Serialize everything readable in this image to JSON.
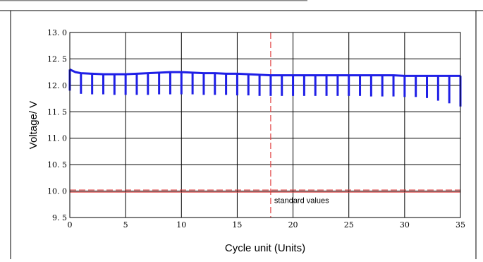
{
  "chart_data": {
    "type": "line",
    "xlabel": "Cycle unit (Units)",
    "ylabel": "Voltage/ V",
    "xlim": [
      0,
      35
    ],
    "ylim": [
      9.5,
      13.0
    ],
    "x_ticks": [
      "0",
      "5",
      "10",
      "15",
      "20",
      "25",
      "30",
      "35"
    ],
    "y_ticks": [
      "9. 5",
      "10. 0",
      "10. 5",
      "11. 0",
      "11. 5",
      "12. 0",
      "12. 5",
      "13. 0"
    ],
    "grid": true,
    "series": [
      {
        "color": "#1f1fe6",
        "upper": [
          [
            0,
            12.3
          ],
          [
            0.5,
            12.25
          ],
          [
            1,
            12.23
          ],
          [
            2,
            12.22
          ],
          [
            3,
            12.21
          ],
          [
            4,
            12.21
          ],
          [
            5,
            12.21
          ],
          [
            6,
            12.22
          ],
          [
            7,
            12.23
          ],
          [
            8,
            12.24
          ],
          [
            9,
            12.25
          ],
          [
            10,
            12.25
          ],
          [
            11,
            12.24
          ],
          [
            12,
            12.23
          ],
          [
            13,
            12.23
          ],
          [
            14,
            12.22
          ],
          [
            15,
            12.22
          ],
          [
            16,
            12.21
          ],
          [
            17,
            12.2
          ],
          [
            18,
            12.19
          ],
          [
            19,
            12.19
          ],
          [
            20,
            12.19
          ],
          [
            21,
            12.19
          ],
          [
            22,
            12.19
          ],
          [
            23,
            12.19
          ],
          [
            24,
            12.19
          ],
          [
            25,
            12.19
          ],
          [
            26,
            12.19
          ],
          [
            27,
            12.19
          ],
          [
            28,
            12.19
          ],
          [
            29,
            12.19
          ],
          [
            30,
            12.18
          ],
          [
            31,
            12.18
          ],
          [
            32,
            12.18
          ],
          [
            33,
            12.18
          ],
          [
            34,
            12.18
          ],
          [
            35,
            12.18
          ]
        ],
        "drops": [
          [
            0,
            11.9
          ],
          [
            1,
            11.84
          ],
          [
            2,
            11.83
          ],
          [
            3,
            11.83
          ],
          [
            4,
            11.82
          ],
          [
            5,
            11.82
          ],
          [
            6,
            11.82
          ],
          [
            7,
            11.82
          ],
          [
            8,
            11.83
          ],
          [
            9,
            11.83
          ],
          [
            10,
            11.83
          ],
          [
            11,
            11.83
          ],
          [
            12,
            11.82
          ],
          [
            13,
            11.82
          ],
          [
            14,
            11.82
          ],
          [
            15,
            11.81
          ],
          [
            16,
            11.81
          ],
          [
            17,
            11.8
          ],
          [
            18,
            11.8
          ],
          [
            19,
            11.8
          ],
          [
            20,
            11.8
          ],
          [
            21,
            11.8
          ],
          [
            22,
            11.8
          ],
          [
            23,
            11.8
          ],
          [
            24,
            11.8
          ],
          [
            25,
            11.8
          ],
          [
            26,
            11.8
          ],
          [
            27,
            11.79
          ],
          [
            28,
            11.79
          ],
          [
            29,
            11.79
          ],
          [
            30,
            11.78
          ],
          [
            31,
            11.78
          ],
          [
            32,
            11.76
          ],
          [
            33,
            11.71
          ],
          [
            34,
            11.66
          ],
          [
            35,
            11.6
          ]
        ]
      }
    ],
    "reference_lines": [
      {
        "orientation": "horizontal",
        "value": 10.0,
        "color": "#e04040",
        "label": "standard values"
      },
      {
        "orientation": "vertical",
        "value": 18,
        "color": "#e04040"
      }
    ]
  }
}
